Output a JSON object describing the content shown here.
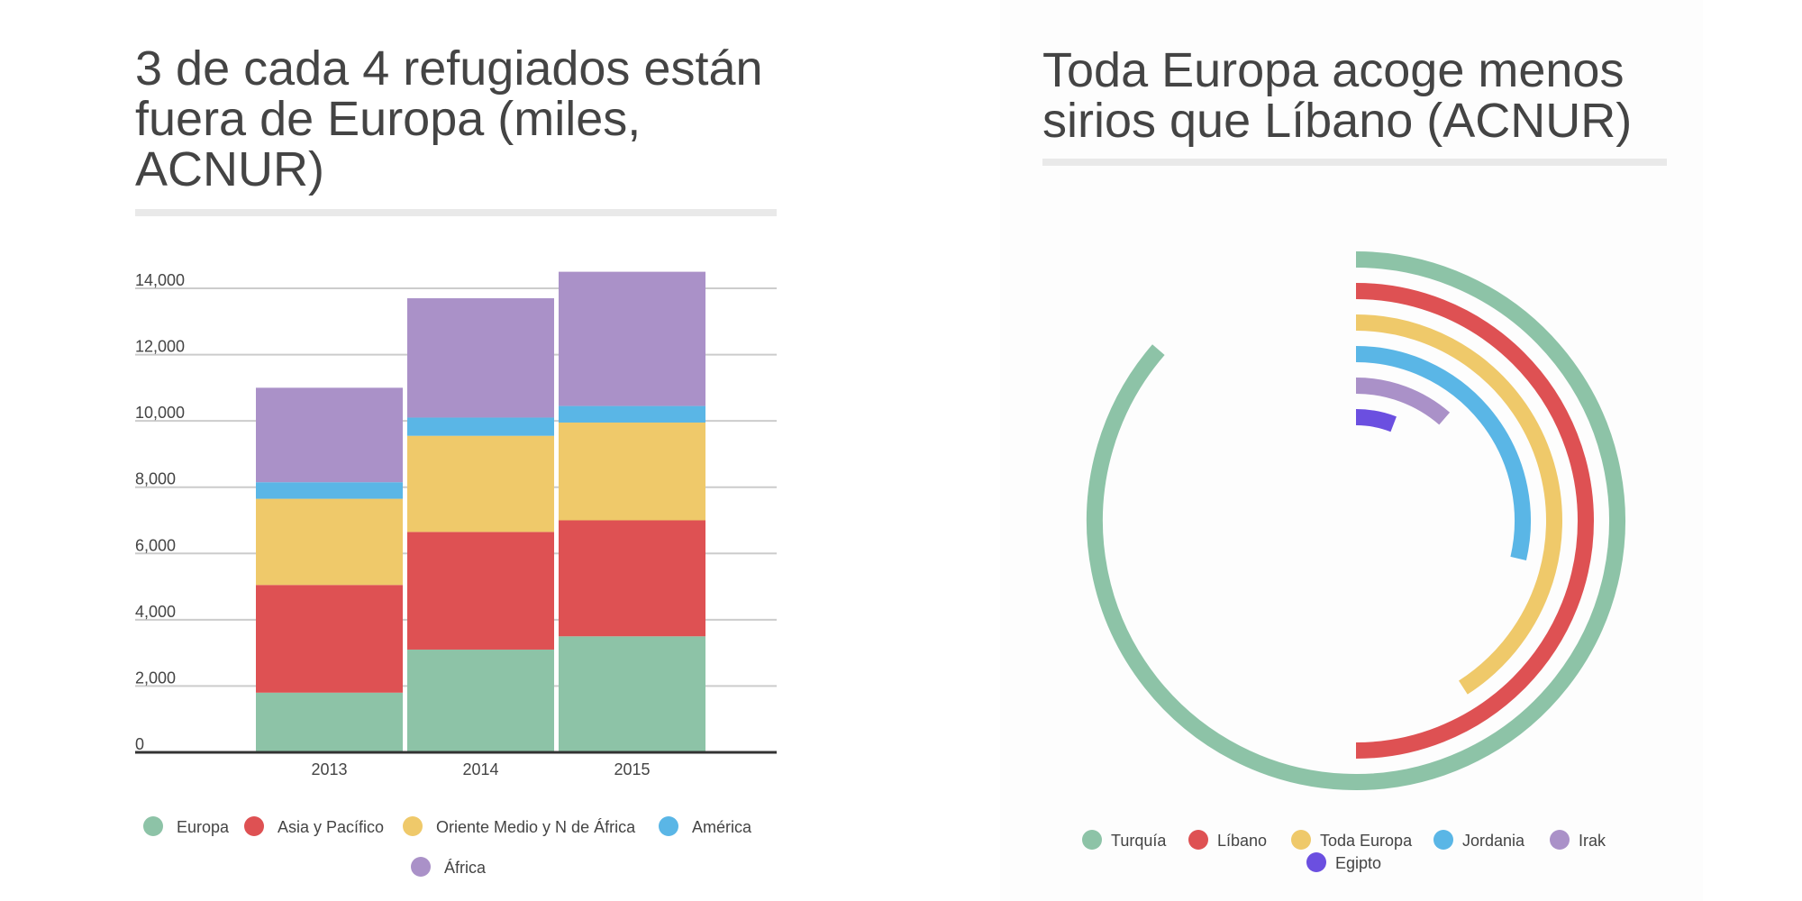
{
  "left_panel": {
    "title": "3 de cada 4 refugiados están fuera de Europa (miles, ACNUR)"
  },
  "right_panel": {
    "title": "Toda Europa acoge menos sirios que Líbano (ACNUR)"
  },
  "chart_data": [
    {
      "type": "bar",
      "stacked": true,
      "title": "3 de cada 4 refugiados están fuera de Europa (miles, ACNUR)",
      "categories": [
        "2013",
        "2014",
        "2015"
      ],
      "series": [
        {
          "name": "Europa",
          "color": "#8dc3a7",
          "values": [
            1800,
            3100,
            3500
          ]
        },
        {
          "name": "Asia y Pacífico",
          "color": "#de5153",
          "values": [
            3250,
            3550,
            3500
          ]
        },
        {
          "name": "Oriente Medio y N de África",
          "color": "#efc96a",
          "values": [
            2600,
            2900,
            2950
          ]
        },
        {
          "name": "América",
          "color": "#5ab6e6",
          "values": [
            500,
            550,
            500
          ]
        },
        {
          "name": "África",
          "color": "#aa91c8",
          "values": [
            2850,
            3600,
            4050
          ]
        }
      ],
      "y_ticks": [
        "0",
        "2,000",
        "4,000",
        "6,000",
        "8,000",
        "10,000",
        "12,000",
        "14,000"
      ],
      "ylim": [
        0,
        14000
      ],
      "grid": true,
      "legend_position": "bottom"
    },
    {
      "type": "radial_bar",
      "title": "Toda Europa acoge menos sirios que Líbano (ACNUR)",
      "categories": [
        "Turquía",
        "Líbano",
        "Toda Europa",
        "Jordania",
        "Irak",
        "Egipto"
      ],
      "values": [
        1900,
        1100,
        900,
        630,
        250,
        130
      ],
      "colors": [
        "#8dc3a7",
        "#de5153",
        "#efc96a",
        "#5ab6e6",
        "#aa91c8",
        "#6b4fe0"
      ],
      "legend_position": "bottom"
    }
  ]
}
